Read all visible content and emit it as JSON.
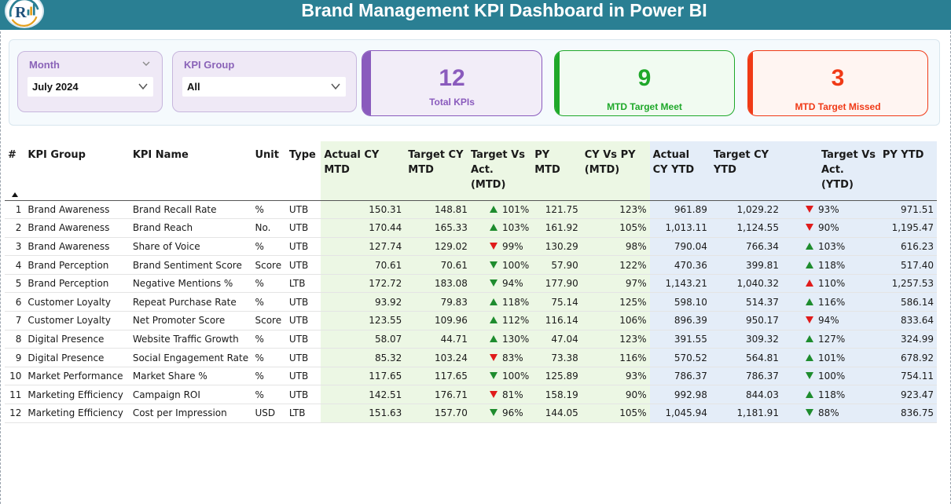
{
  "header": {
    "title": "Brand Management KPI Dashboard in Power BI"
  },
  "filters": {
    "month": {
      "label": "Month",
      "value": "July 2024"
    },
    "kpi_group": {
      "label": "KPI Group",
      "value": "All"
    }
  },
  "cards": [
    {
      "value": "12",
      "label": "Total KPIs",
      "color": "#8a5bbd"
    },
    {
      "value": "9",
      "label": "MTD Target Meet",
      "color": "#1fa82a"
    },
    {
      "value": "3",
      "label": "MTD Target Missed",
      "color": "#f03a17"
    }
  ],
  "table": {
    "columns": [
      "#",
      "KPI Group",
      "KPI Name",
      "Unit",
      "Type",
      "Actual CY MTD",
      "Target CY MTD",
      "Target Vs Act. (MTD)",
      "PY MTD",
      "CY Vs PY (MTD)",
      "Actual CY YTD",
      "Target CY YTD",
      "Target Vs Act. (YTD)",
      "PY YTD"
    ],
    "rows": [
      {
        "n": "1",
        "group": "Brand Awareness",
        "name": "Brand Recall Rate",
        "unit": "%",
        "type": "UTB",
        "act_mtd": "150.31",
        "tgt_mtd": "148.81",
        "tva_mtd_icon": "up-green",
        "tva_mtd": "101%",
        "py_mtd": "121.75",
        "cvp_mtd": "123%",
        "act_ytd": "961.89",
        "tgt_ytd": "1,029.22",
        "tva_ytd_icon": "down-red",
        "tva_ytd": "93%",
        "py_ytd": "971.51"
      },
      {
        "n": "2",
        "group": "Brand Awareness",
        "name": "Brand Reach",
        "unit": "No.",
        "type": "UTB",
        "act_mtd": "170.44",
        "tgt_mtd": "165.33",
        "tva_mtd_icon": "up-green",
        "tva_mtd": "103%",
        "py_mtd": "161.92",
        "cvp_mtd": "105%",
        "act_ytd": "1,013.11",
        "tgt_ytd": "1,124.55",
        "tva_ytd_icon": "down-red",
        "tva_ytd": "90%",
        "py_ytd": "1,195.47"
      },
      {
        "n": "3",
        "group": "Brand Awareness",
        "name": "Share of Voice",
        "unit": "%",
        "type": "UTB",
        "act_mtd": "127.74",
        "tgt_mtd": "129.02",
        "tva_mtd_icon": "down-red",
        "tva_mtd": "99%",
        "py_mtd": "130.29",
        "cvp_mtd": "98%",
        "act_ytd": "790.04",
        "tgt_ytd": "766.34",
        "tva_ytd_icon": "up-green",
        "tva_ytd": "103%",
        "py_ytd": "616.23"
      },
      {
        "n": "4",
        "group": "Brand Perception",
        "name": "Brand Sentiment Score",
        "unit": "Score",
        "type": "UTB",
        "act_mtd": "70.61",
        "tgt_mtd": "70.61",
        "tva_mtd_icon": "down-green",
        "tva_mtd": "100%",
        "py_mtd": "57.90",
        "cvp_mtd": "122%",
        "act_ytd": "470.36",
        "tgt_ytd": "399.81",
        "tva_ytd_icon": "up-green",
        "tva_ytd": "118%",
        "py_ytd": "517.40"
      },
      {
        "n": "5",
        "group": "Brand Perception",
        "name": "Negative Mentions %",
        "unit": "%",
        "type": "LTB",
        "act_mtd": "172.72",
        "tgt_mtd": "183.08",
        "tva_mtd_icon": "down-green",
        "tva_mtd": "94%",
        "py_mtd": "177.90",
        "cvp_mtd": "97%",
        "act_ytd": "1,143.21",
        "tgt_ytd": "1,040.32",
        "tva_ytd_icon": "up-red",
        "tva_ytd": "110%",
        "py_ytd": "1,257.53"
      },
      {
        "n": "6",
        "group": "Customer Loyalty",
        "name": "Repeat Purchase Rate",
        "unit": "%",
        "type": "UTB",
        "act_mtd": "93.92",
        "tgt_mtd": "79.83",
        "tva_mtd_icon": "up-green",
        "tva_mtd": "118%",
        "py_mtd": "75.14",
        "cvp_mtd": "125%",
        "act_ytd": "598.10",
        "tgt_ytd": "514.37",
        "tva_ytd_icon": "up-green",
        "tva_ytd": "116%",
        "py_ytd": "586.14"
      },
      {
        "n": "7",
        "group": "Customer Loyalty",
        "name": "Net Promoter Score",
        "unit": "Score",
        "type": "UTB",
        "act_mtd": "123.55",
        "tgt_mtd": "109.96",
        "tva_mtd_icon": "up-green",
        "tva_mtd": "112%",
        "py_mtd": "116.14",
        "cvp_mtd": "106%",
        "act_ytd": "896.39",
        "tgt_ytd": "950.17",
        "tva_ytd_icon": "down-red",
        "tva_ytd": "94%",
        "py_ytd": "833.64"
      },
      {
        "n": "8",
        "group": "Digital Presence",
        "name": "Website Traffic Growth",
        "unit": "%",
        "type": "UTB",
        "act_mtd": "58.07",
        "tgt_mtd": "44.71",
        "tva_mtd_icon": "up-green",
        "tva_mtd": "130%",
        "py_mtd": "47.04",
        "cvp_mtd": "123%",
        "act_ytd": "391.55",
        "tgt_ytd": "309.32",
        "tva_ytd_icon": "up-green",
        "tva_ytd": "127%",
        "py_ytd": "324.99"
      },
      {
        "n": "9",
        "group": "Digital Presence",
        "name": "Social Engagement Rate",
        "unit": "%",
        "type": "UTB",
        "act_mtd": "85.32",
        "tgt_mtd": "103.24",
        "tva_mtd_icon": "down-red",
        "tva_mtd": "83%",
        "py_mtd": "73.38",
        "cvp_mtd": "116%",
        "act_ytd": "570.52",
        "tgt_ytd": "564.81",
        "tva_ytd_icon": "up-green",
        "tva_ytd": "101%",
        "py_ytd": "678.92"
      },
      {
        "n": "10",
        "group": "Market Performance",
        "name": "Market Share %",
        "unit": "%",
        "type": "UTB",
        "act_mtd": "117.65",
        "tgt_mtd": "117.65",
        "tva_mtd_icon": "down-green",
        "tva_mtd": "100%",
        "py_mtd": "125.89",
        "cvp_mtd": "93%",
        "act_ytd": "786.37",
        "tgt_ytd": "786.37",
        "tva_ytd_icon": "down-green",
        "tva_ytd": "100%",
        "py_ytd": "754.11"
      },
      {
        "n": "11",
        "group": "Marketing Efficiency",
        "name": "Campaign ROI",
        "unit": "%",
        "type": "UTB",
        "act_mtd": "142.51",
        "tgt_mtd": "176.71",
        "tva_mtd_icon": "down-red",
        "tva_mtd": "81%",
        "py_mtd": "158.19",
        "cvp_mtd": "90%",
        "act_ytd": "992.98",
        "tgt_ytd": "844.03",
        "tva_ytd_icon": "up-green",
        "tva_ytd": "118%",
        "py_ytd": "923.47"
      },
      {
        "n": "12",
        "group": "Marketing Efficiency",
        "name": "Cost per Impression",
        "unit": "USD",
        "type": "LTB",
        "act_mtd": "151.63",
        "tgt_mtd": "157.70",
        "tva_mtd_icon": "down-green",
        "tva_mtd": "96%",
        "py_mtd": "144.05",
        "cvp_mtd": "105%",
        "act_ytd": "1,045.94",
        "tgt_ytd": "1,181.91",
        "tva_ytd_icon": "down-green",
        "tva_ytd": "88%",
        "py_ytd": "836.75"
      }
    ]
  }
}
